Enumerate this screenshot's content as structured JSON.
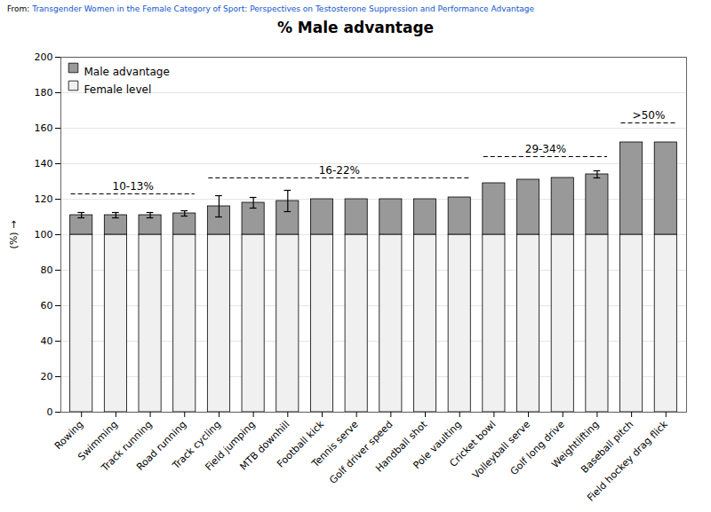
{
  "chart_data": {
    "type": "bar",
    "stacked": true,
    "title": "% Male advantage",
    "ylabel": "(%)",
    "source_prefix": "From: ",
    "source_link": "Transgender Women in the Female Category of Sport: Perspectives on Testosterone Suppression and Performance Advantage",
    "categories": [
      "Rowing",
      "Swimming",
      "Track running",
      "Road running",
      "Track cycling",
      "Field jumping",
      "MTB downhill",
      "Football kick",
      "Tennis serve",
      "Golf driver speed",
      "Handball shot",
      "Pole vaulting",
      "Cricket bowl",
      "Volleyball serve",
      "Golf long drive",
      "Weightlifting",
      "Baseball pitch",
      "Field hockey drag flick"
    ],
    "series": [
      {
        "name": "Female level",
        "color": "#f0f0f0",
        "values": [
          100,
          100,
          100,
          100,
          100,
          100,
          100,
          100,
          100,
          100,
          100,
          100,
          100,
          100,
          100,
          100,
          100,
          100
        ]
      },
      {
        "name": "Male advantage",
        "color": "#999999",
        "values": [
          11,
          11,
          11,
          12,
          16,
          18,
          19,
          20,
          20,
          20,
          20,
          21,
          29,
          31,
          32,
          34,
          52,
          52
        ],
        "errors": [
          1.5,
          1.5,
          1.5,
          1.5,
          6,
          3,
          6,
          0,
          0,
          0,
          0,
          0,
          0,
          0,
          0,
          2,
          0,
          0
        ]
      }
    ],
    "annotations": [
      {
        "text": "10-13%",
        "x_start": "Rowing",
        "x_end": "Road running",
        "y": 123
      },
      {
        "text": "16-22%",
        "x_start": "Track cycling",
        "x_end": "Pole vaulting",
        "y": 132
      },
      {
        "text": "29-34%",
        "x_start": "Cricket bowl",
        "x_end": "Weightlifting",
        "y": 144
      },
      {
        "text": ">50%",
        "x_start": "Baseball pitch",
        "x_end": "Field hockey drag flick",
        "y": 163
      }
    ],
    "ylim": [
      0,
      200
    ],
    "yticks": [
      0,
      20,
      40,
      60,
      80,
      100,
      120,
      140,
      160,
      180,
      200
    ],
    "grid": true,
    "legend": "upper left"
  }
}
